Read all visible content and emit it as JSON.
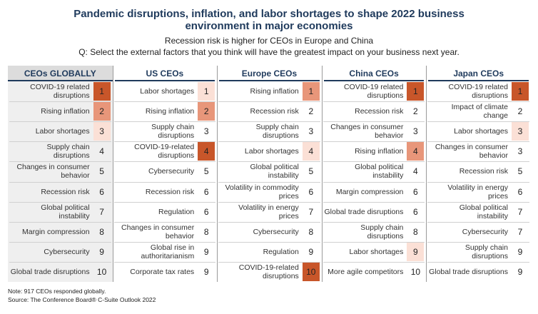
{
  "title_line1": "Pandemic disruptions, inflation, and labor shortages to shape 2022 business",
  "title_line2": "environment in major economies",
  "subtitle": "Recession risk is higher for CEOs in Europe and China",
  "question": "Q: Select the external factors that you think will have the greatest impact on your business next year.",
  "note": "Note: 917 CEOs responded globally.",
  "source": "Source: The Conference Board® C-Suite Outlook 2022",
  "colors": {
    "rank_1": "#c8562a",
    "rank_2": "#e8967a",
    "rank_3": "#fbe0d6",
    "rank_4_highlight": "#e8967a",
    "rank_9_highlight": "#fbe0d6",
    "rank_10_highlight": "#c8562a",
    "header_text": "#1f3a5c"
  },
  "chart_data": {
    "type": "table",
    "columns": [
      {
        "header": "CEOs GLOBALLY",
        "rows": [
          {
            "factor": "COVID-19 related disruptions",
            "rank": 1,
            "shade": "rank_1"
          },
          {
            "factor": "Rising inflation",
            "rank": 2,
            "shade": "rank_2"
          },
          {
            "factor": "Labor shortages",
            "rank": 3,
            "shade": "rank_3"
          },
          {
            "factor": "Supply chain disruptions",
            "rank": 4,
            "shade": ""
          },
          {
            "factor": "Changes in consumer behavior",
            "rank": 5,
            "shade": ""
          },
          {
            "factor": "Recession risk",
            "rank": 6,
            "shade": ""
          },
          {
            "factor": "Global political instability",
            "rank": 7,
            "shade": ""
          },
          {
            "factor": "Margin compression",
            "rank": 8,
            "shade": ""
          },
          {
            "factor": "Cybersecurity",
            "rank": 9,
            "shade": ""
          },
          {
            "factor": "Global trade disruptions",
            "rank": 10,
            "shade": ""
          }
        ]
      },
      {
        "header": "US CEOs",
        "rows": [
          {
            "factor": "Labor shortages",
            "rank": 1,
            "shade": "rank_3"
          },
          {
            "factor": "Rising inflation",
            "rank": 2,
            "shade": "rank_2"
          },
          {
            "factor": "Supply chain disruptions",
            "rank": 3,
            "shade": ""
          },
          {
            "factor": "COVID-19-related disruptions",
            "rank": 4,
            "shade": "rank_1"
          },
          {
            "factor": "Cybersecurity",
            "rank": 5,
            "shade": ""
          },
          {
            "factor": "Recession risk",
            "rank": 6,
            "shade": ""
          },
          {
            "factor": "Regulation",
            "rank": 6,
            "shade": ""
          },
          {
            "factor": "Changes in consumer behavior",
            "rank": 8,
            "shade": ""
          },
          {
            "factor": "Global rise in authoritarianism",
            "rank": 9,
            "shade": ""
          },
          {
            "factor": "Corporate tax rates",
            "rank": 9,
            "shade": ""
          }
        ]
      },
      {
        "header": "Europe CEOs",
        "rows": [
          {
            "factor": "Rising inflation",
            "rank": 1,
            "shade": "rank_2"
          },
          {
            "factor": "Recession risk",
            "rank": 2,
            "shade": ""
          },
          {
            "factor": "Supply chain disruptions",
            "rank": 3,
            "shade": ""
          },
          {
            "factor": "Labor shortages",
            "rank": 4,
            "shade": "rank_3"
          },
          {
            "factor": "Global political instability",
            "rank": 5,
            "shade": ""
          },
          {
            "factor": "Volatility in commodity prices",
            "rank": 6,
            "shade": ""
          },
          {
            "factor": "Volatility in energy prices",
            "rank": 7,
            "shade": ""
          },
          {
            "factor": "Cybersecurity",
            "rank": 8,
            "shade": ""
          },
          {
            "factor": "Regulation",
            "rank": 9,
            "shade": ""
          },
          {
            "factor": "COVID-19-related disruptions",
            "rank": 10,
            "shade": "rank_1"
          }
        ]
      },
      {
        "header": "China CEOs",
        "rows": [
          {
            "factor": "COVID-19 related disruptions",
            "rank": 1,
            "shade": "rank_1"
          },
          {
            "factor": "Recession risk",
            "rank": 2,
            "shade": ""
          },
          {
            "factor": "Changes in consumer behavior",
            "rank": 3,
            "shade": ""
          },
          {
            "factor": "Rising inflation",
            "rank": 4,
            "shade": "rank_2"
          },
          {
            "factor": "Global political instability",
            "rank": 4,
            "shade": ""
          },
          {
            "factor": "Margin compression",
            "rank": 6,
            "shade": ""
          },
          {
            "factor": "Global trade disruptions",
            "rank": 6,
            "shade": ""
          },
          {
            "factor": "Supply chain disruptions",
            "rank": 8,
            "shade": ""
          },
          {
            "factor": "Labor shortages",
            "rank": 9,
            "shade": "rank_3"
          },
          {
            "factor": "More agile competitors",
            "rank": 10,
            "shade": ""
          }
        ]
      },
      {
        "header": "Japan CEOs",
        "rows": [
          {
            "factor": "COVID-19 related disruptions",
            "rank": 1,
            "shade": "rank_1"
          },
          {
            "factor": "Impact of climate change",
            "rank": 2,
            "shade": ""
          },
          {
            "factor": "Labor shortages",
            "rank": 3,
            "shade": "rank_3"
          },
          {
            "factor": "Changes in consumer behavior",
            "rank": 3,
            "shade": ""
          },
          {
            "factor": "Recession risk",
            "rank": 5,
            "shade": ""
          },
          {
            "factor": "Volatility in energy prices",
            "rank": 6,
            "shade": ""
          },
          {
            "factor": "Global political instability",
            "rank": 7,
            "shade": ""
          },
          {
            "factor": "Cybersecurity",
            "rank": 7,
            "shade": ""
          },
          {
            "factor": "Supply chain disruptions",
            "rank": 9,
            "shade": ""
          },
          {
            "factor": "Global trade disruptions",
            "rank": 9,
            "shade": ""
          }
        ]
      }
    ]
  }
}
